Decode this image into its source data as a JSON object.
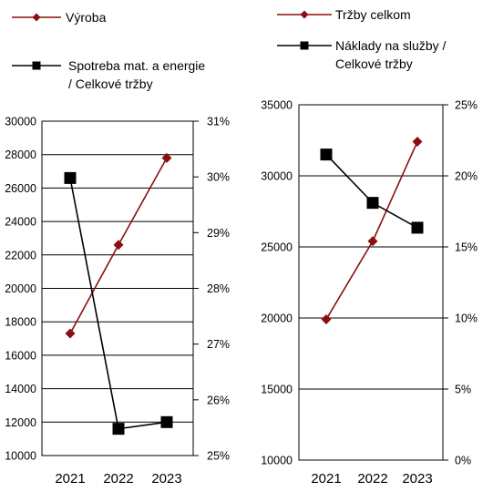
{
  "colors": {
    "red": "#8b0f0f",
    "black": "#000000"
  },
  "chart_data": [
    {
      "type": "line",
      "categories": [
        "2021",
        "2022",
        "2023"
      ],
      "grid": true,
      "left_axis": {
        "ylim": [
          10000,
          30000
        ],
        "ticks": [
          "10000",
          "12000",
          "14000",
          "16000",
          "18000",
          "20000",
          "22000",
          "24000",
          "26000",
          "28000",
          "30000"
        ]
      },
      "right_axis": {
        "ylim": [
          25,
          31
        ],
        "ticks": [
          "25%",
          "26%",
          "27%",
          "28%",
          "29%",
          "30%",
          "31%"
        ]
      },
      "series": [
        {
          "name": "Výroba",
          "axis": "left",
          "marker": "diamond",
          "color": "#8b0f0f",
          "values": [
            17300,
            22600,
            27800
          ]
        },
        {
          "name": "Spotreba mat. a energie / Celkové tržby",
          "name_lines": [
            "Spotreba mat. a energie",
            "/ Celkové tržby"
          ],
          "axis": "right",
          "marker": "square",
          "color": "#000000",
          "values": [
            29.98,
            25.48,
            25.6
          ]
        }
      ]
    },
    {
      "type": "line",
      "categories": [
        "2021",
        "2022",
        "2023"
      ],
      "grid": true,
      "left_axis": {
        "ylim": [
          10000,
          35000
        ],
        "ticks": [
          "10000",
          "15000",
          "20000",
          "25000",
          "30000",
          "35000"
        ]
      },
      "right_axis": {
        "ylim": [
          0,
          25
        ],
        "ticks": [
          "0%",
          "5%",
          "10%",
          "15%",
          "20%",
          "25%"
        ]
      },
      "series": [
        {
          "name": "Tržby celkom",
          "axis": "left",
          "marker": "diamond",
          "color": "#8b0f0f",
          "values": [
            19900,
            25400,
            32400
          ]
        },
        {
          "name": "Náklady na služby / Celkové tržby",
          "name_lines": [
            "Náklady na služby /",
            "Celkové tržby"
          ],
          "axis": "right",
          "marker": "square",
          "color": "#000000",
          "values": [
            21.5,
            18.1,
            16.35
          ]
        }
      ]
    }
  ]
}
